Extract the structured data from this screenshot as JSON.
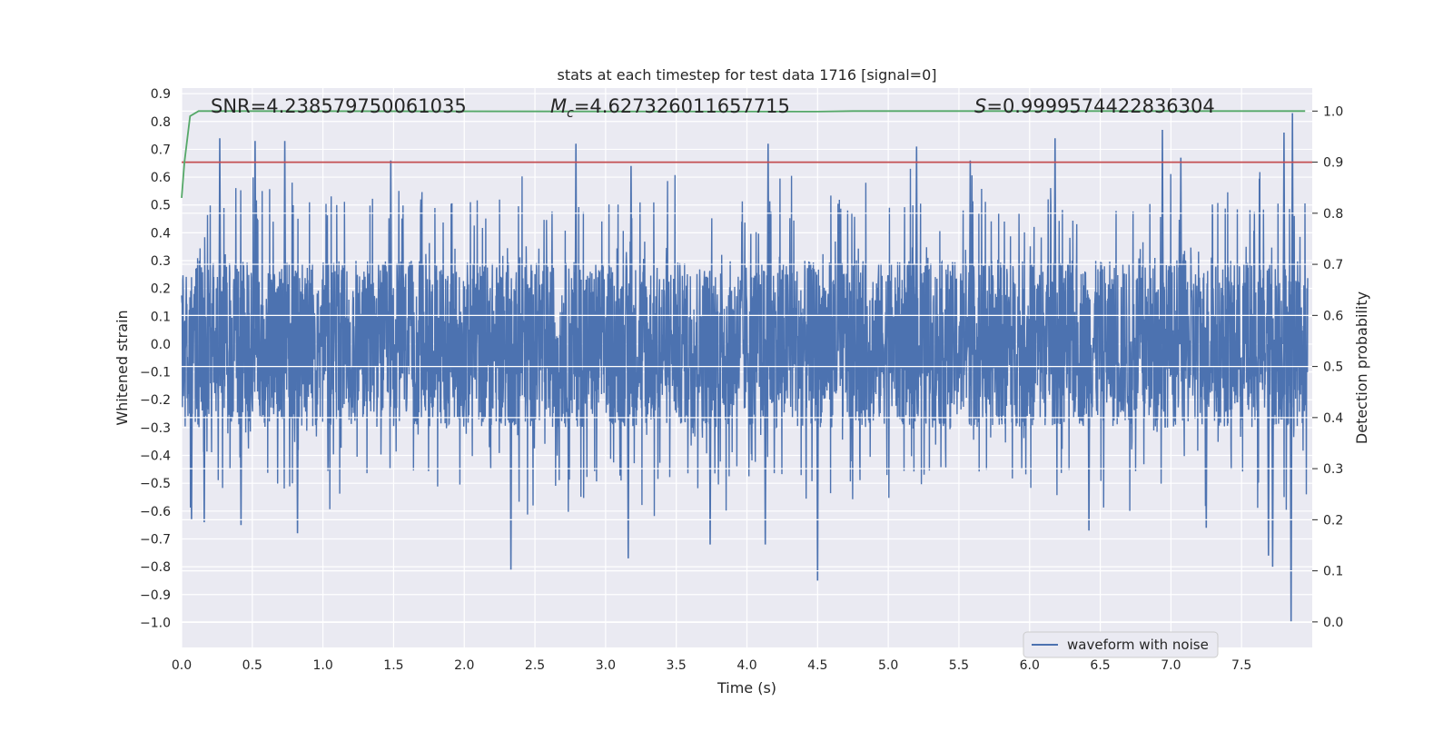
{
  "chart_data": {
    "type": "line",
    "title": "stats at each timestep for test data 1716 [signal=0]",
    "xlabel": "Time (s)",
    "ylabel": "Whitened strain",
    "y2label": "Detection probability",
    "xlim": [
      0.0,
      8.0
    ],
    "ylim": [
      -1.09,
      0.92
    ],
    "y2lim": [
      -0.05,
      1.045
    ],
    "x_ticks": [
      "0.0",
      "0.5",
      "1.0",
      "1.5",
      "2.0",
      "2.5",
      "3.0",
      "3.5",
      "4.0",
      "4.5",
      "5.0",
      "5.5",
      "6.0",
      "6.5",
      "7.0",
      "7.5"
    ],
    "y_ticks": [
      "0.9",
      "0.8",
      "0.7",
      "0.6",
      "0.5",
      "0.4",
      "0.3",
      "0.2",
      "0.1",
      "0.0",
      "−0.1",
      "−0.2",
      "−0.3",
      "−0.4",
      "−0.5",
      "−0.6",
      "−0.7",
      "−0.8",
      "−0.9",
      "−1.0"
    ],
    "y2_ticks": [
      "1.0",
      "0.9",
      "0.8",
      "0.7",
      "0.6",
      "0.5",
      "0.4",
      "0.3",
      "0.2",
      "0.1",
      "0.0"
    ],
    "grid": true,
    "legend": {
      "placement": "bottom-right",
      "entries": [
        "waveform with noise"
      ]
    },
    "annotations": {
      "snr": "SNR=4.238579750061035",
      "mc_symbol": "M",
      "mc_sub": "c",
      "mc_value": "=4.627326011657715",
      "s_symbol": "S",
      "s_value": "=0.9999574422836304"
    },
    "series": [
      {
        "name": "waveform with noise",
        "axis": "left",
        "color": "#4c72b0",
        "kind": "noise",
        "samples": 4096,
        "base_range": [
          -0.45,
          0.45
        ],
        "peaks": [
          {
            "x": 0.27,
            "y": 0.74
          },
          {
            "x": 0.52,
            "y": 0.73
          },
          {
            "x": 0.73,
            "y": 0.73
          },
          {
            "x": 2.79,
            "y": 0.72
          },
          {
            "x": 4.15,
            "y": 0.72
          },
          {
            "x": 5.2,
            "y": 0.71
          },
          {
            "x": 6.18,
            "y": 0.74
          },
          {
            "x": 6.94,
            "y": 0.77
          },
          {
            "x": 7.8,
            "y": 0.76
          },
          {
            "x": 7.86,
            "y": 0.83
          },
          {
            "x": 3.18,
            "y": 0.64
          },
          {
            "x": 1.48,
            "y": 0.66
          },
          {
            "x": 5.58,
            "y": 0.66
          },
          {
            "x": 7.07,
            "y": 0.67
          },
          {
            "x": 2.33,
            "y": -0.81
          },
          {
            "x": 3.16,
            "y": -0.77
          },
          {
            "x": 3.74,
            "y": -0.72
          },
          {
            "x": 4.5,
            "y": -0.85
          },
          {
            "x": 7.85,
            "y": -1.0
          },
          {
            "x": 7.72,
            "y": -0.8
          },
          {
            "x": 7.69,
            "y": -0.76
          },
          {
            "x": 0.82,
            "y": -0.68
          },
          {
            "x": 4.13,
            "y": -0.72
          },
          {
            "x": 6.42,
            "y": -0.67
          },
          {
            "x": 7.25,
            "y": -0.66
          },
          {
            "x": 0.07,
            "y": -0.63
          },
          {
            "x": 0.16,
            "y": -0.64
          },
          {
            "x": 0.42,
            "y": -0.65
          }
        ]
      },
      {
        "name": "detection probability",
        "axis": "right",
        "color": "#55a868",
        "points": [
          [
            0.0,
            0.83
          ],
          [
            0.02,
            0.9
          ],
          [
            0.06,
            0.99
          ],
          [
            0.12,
            1.0
          ],
          [
            4.5,
            0.999
          ],
          [
            4.75,
            1.0
          ],
          [
            7.95,
            1.0
          ]
        ]
      },
      {
        "name": "threshold",
        "axis": "right",
        "color": "#c44e52",
        "points": [
          [
            0.0,
            0.9
          ],
          [
            8.0,
            0.9
          ]
        ]
      }
    ]
  }
}
